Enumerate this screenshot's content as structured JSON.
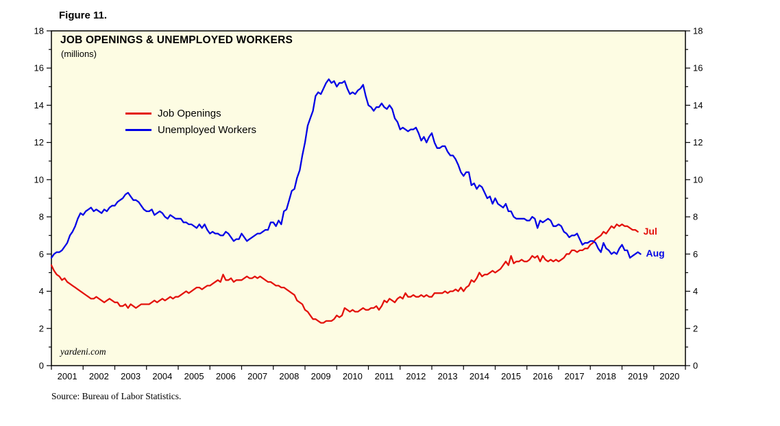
{
  "figure_label": "Figure 11.",
  "subtitle": "(millions)",
  "watermark": "yardeni.com",
  "source": "Source: Bureau of Labor Statistics.",
  "chart_data": {
    "type": "line",
    "title": "JOB OPENINGS & UNEMPLOYED WORKERS",
    "unit": "millions",
    "ylim": [
      0,
      18
    ],
    "y_tick_interval": 2,
    "grid": false,
    "legend_position": "upper-left-inside",
    "plot_bg": "#FDFCE3",
    "x_tick_labels": [
      "2001",
      "2002",
      "2003",
      "2004",
      "2005",
      "2006",
      "2007",
      "2008",
      "2009",
      "2010",
      "2011",
      "2012",
      "2013",
      "2014",
      "2015",
      "2016",
      "2017",
      "2018",
      "2019",
      "2020"
    ],
    "x_frequency": "monthly",
    "x_start": "2001-01",
    "series": [
      {
        "name": "Job Openings",
        "color": "#E3120B",
        "end_label": "Jul",
        "values": [
          5.4,
          5.1,
          4.9,
          4.8,
          4.6,
          4.7,
          4.5,
          4.4,
          4.3,
          4.2,
          4.1,
          4.0,
          3.9,
          3.8,
          3.7,
          3.6,
          3.6,
          3.7,
          3.6,
          3.5,
          3.4,
          3.5,
          3.6,
          3.5,
          3.4,
          3.4,
          3.2,
          3.2,
          3.3,
          3.1,
          3.3,
          3.2,
          3.1,
          3.2,
          3.3,
          3.3,
          3.3,
          3.3,
          3.4,
          3.5,
          3.4,
          3.5,
          3.6,
          3.5,
          3.6,
          3.7,
          3.6,
          3.7,
          3.7,
          3.8,
          3.9,
          4.0,
          3.9,
          4.0,
          4.1,
          4.2,
          4.2,
          4.1,
          4.2,
          4.3,
          4.3,
          4.4,
          4.5,
          4.6,
          4.5,
          4.9,
          4.6,
          4.6,
          4.7,
          4.5,
          4.6,
          4.6,
          4.6,
          4.7,
          4.8,
          4.7,
          4.7,
          4.8,
          4.7,
          4.8,
          4.7,
          4.6,
          4.5,
          4.5,
          4.4,
          4.3,
          4.3,
          4.2,
          4.2,
          4.1,
          4.0,
          3.9,
          3.8,
          3.5,
          3.4,
          3.3,
          3.0,
          2.9,
          2.7,
          2.5,
          2.5,
          2.4,
          2.3,
          2.3,
          2.4,
          2.4,
          2.4,
          2.5,
          2.7,
          2.6,
          2.7,
          3.1,
          3.0,
          2.9,
          3.0,
          2.9,
          2.9,
          3.0,
          3.1,
          3.0,
          3.0,
          3.1,
          3.1,
          3.2,
          3.0,
          3.2,
          3.5,
          3.4,
          3.6,
          3.5,
          3.4,
          3.6,
          3.7,
          3.6,
          3.9,
          3.7,
          3.7,
          3.8,
          3.7,
          3.7,
          3.8,
          3.7,
          3.8,
          3.7,
          3.7,
          3.9,
          3.9,
          3.9,
          3.9,
          4.0,
          3.9,
          4.0,
          4.0,
          4.1,
          4.0,
          4.2,
          4.0,
          4.2,
          4.3,
          4.6,
          4.5,
          4.7,
          5.0,
          4.8,
          4.9,
          4.9,
          5.0,
          5.1,
          5.0,
          5.1,
          5.2,
          5.4,
          5.6,
          5.4,
          5.9,
          5.5,
          5.6,
          5.6,
          5.7,
          5.6,
          5.6,
          5.7,
          5.9,
          5.8,
          5.9,
          5.6,
          5.9,
          5.7,
          5.6,
          5.7,
          5.6,
          5.7,
          5.6,
          5.7,
          5.8,
          6.0,
          6.0,
          6.2,
          6.2,
          6.1,
          6.2,
          6.2,
          6.3,
          6.3,
          6.5,
          6.6,
          6.8,
          6.9,
          7.0,
          7.2,
          7.1,
          7.3,
          7.5,
          7.4,
          7.6,
          7.5,
          7.6,
          7.5,
          7.5,
          7.4,
          7.3,
          7.3,
          7.2
        ]
      },
      {
        "name": "Unemployed Workers",
        "color": "#0000E6",
        "end_label": "Aug",
        "values": [
          5.8,
          6.0,
          6.1,
          6.1,
          6.2,
          6.4,
          6.6,
          7.0,
          7.2,
          7.5,
          7.9,
          8.2,
          8.1,
          8.3,
          8.4,
          8.5,
          8.3,
          8.4,
          8.3,
          8.2,
          8.4,
          8.3,
          8.5,
          8.6,
          8.6,
          8.8,
          8.9,
          9.0,
          9.2,
          9.3,
          9.1,
          8.9,
          8.9,
          8.8,
          8.6,
          8.4,
          8.3,
          8.3,
          8.4,
          8.1,
          8.2,
          8.3,
          8.2,
          8.0,
          7.9,
          8.1,
          8.0,
          7.9,
          7.9,
          7.9,
          7.7,
          7.7,
          7.6,
          7.6,
          7.5,
          7.4,
          7.6,
          7.4,
          7.6,
          7.3,
          7.1,
          7.2,
          7.1,
          7.1,
          7.0,
          7.0,
          7.2,
          7.1,
          6.9,
          6.7,
          6.8,
          6.8,
          7.1,
          6.9,
          6.7,
          6.8,
          6.9,
          7.0,
          7.1,
          7.1,
          7.2,
          7.3,
          7.3,
          7.7,
          7.7,
          7.5,
          7.8,
          7.6,
          8.3,
          8.4,
          8.9,
          9.4,
          9.5,
          10.1,
          10.5,
          11.3,
          12.0,
          12.9,
          13.3,
          13.7,
          14.5,
          14.7,
          14.6,
          14.9,
          15.2,
          15.4,
          15.2,
          15.3,
          15.0,
          15.2,
          15.2,
          15.3,
          14.9,
          14.6,
          14.7,
          14.6,
          14.8,
          14.9,
          15.1,
          14.5,
          14.0,
          13.9,
          13.7,
          13.9,
          13.9,
          14.1,
          13.9,
          13.8,
          14.0,
          13.8,
          13.3,
          13.1,
          12.7,
          12.8,
          12.7,
          12.6,
          12.7,
          12.7,
          12.8,
          12.5,
          12.1,
          12.3,
          12.0,
          12.3,
          12.5,
          12.0,
          11.7,
          11.7,
          11.8,
          11.8,
          11.5,
          11.3,
          11.3,
          11.1,
          10.8,
          10.4,
          10.2,
          10.4,
          10.4,
          9.7,
          9.8,
          9.5,
          9.7,
          9.6,
          9.3,
          9.0,
          9.1,
          8.7,
          9.0,
          8.7,
          8.6,
          8.5,
          8.7,
          8.3,
          8.3,
          8.0,
          7.9,
          7.9,
          7.9,
          7.9,
          7.8,
          7.8,
          8.0,
          7.9,
          7.4,
          7.8,
          7.7,
          7.8,
          7.9,
          7.8,
          7.5,
          7.5,
          7.6,
          7.5,
          7.2,
          7.1,
          6.9,
          7.0,
          7.0,
          7.1,
          6.8,
          6.5,
          6.6,
          6.6,
          6.7,
          6.7,
          6.6,
          6.3,
          6.1,
          6.6,
          6.3,
          6.2,
          6.0,
          6.1,
          6.0,
          6.3,
          6.5,
          6.2,
          6.2,
          5.8,
          5.9,
          6.0,
          6.1,
          6.0
        ]
      }
    ]
  }
}
